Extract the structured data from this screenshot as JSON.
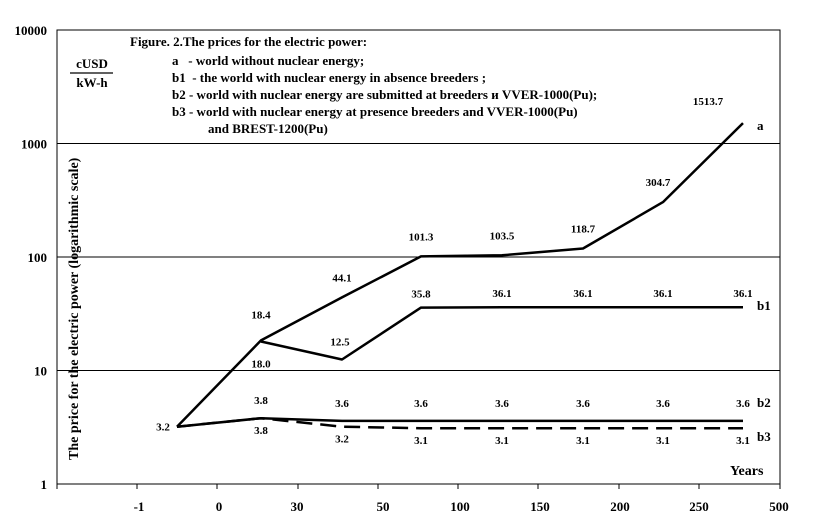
{
  "chart_data": {
    "type": "line",
    "y_scale": "log",
    "ylim": [
      1,
      10000
    ],
    "y_ticks": [
      "10000",
      "1000",
      "100",
      "10",
      "1"
    ],
    "x_ticks": [
      "-1",
      "0",
      "30",
      "50",
      "100",
      "150",
      "200",
      "250",
      "500"
    ],
    "x_positions": [
      "-1",
      "0",
      "30",
      "50",
      "100",
      "150",
      "200",
      "250"
    ],
    "xlabel": "Years",
    "ylabel": "The price for the electric power (logarithmic scale)",
    "units": {
      "numerator": "cUSD",
      "denominator": "kW-h"
    },
    "grid": "horizontal",
    "caption": [
      "Figure. 2.The prices for the electric power:",
      "a   - world without nuclear energy;",
      "b1  - the world with nuclear energy in absence breeders ;",
      "b2 - world with nuclear energy are submitted at  breeders и VVER-1000(Pu);",
      "b3 - world with nuclear energy  at presence breeders and VVER-1000(Pu)",
      "and BREST-1200(Pu)"
    ],
    "series": [
      {
        "name": "a",
        "dash": false,
        "x_index": [
          0,
          1,
          2,
          3,
          4,
          5,
          6,
          7
        ],
        "values": [
          3.2,
          18.4,
          44.1,
          101.3,
          103.5,
          118.7,
          304.7,
          1513.7
        ],
        "labels": [
          "",
          "18.4",
          "44.1",
          "101.3",
          "103.5",
          "118.7",
          "304.7",
          "1513.7"
        ]
      },
      {
        "name": "b1",
        "dash": false,
        "x_index": [
          1,
          2,
          3,
          4,
          5,
          6,
          7
        ],
        "values": [
          18.0,
          12.5,
          35.8,
          36.1,
          36.1,
          36.1,
          36.1
        ],
        "labels": [
          "18.0",
          "12.5",
          "35.8",
          "36.1",
          "36.1",
          "36.1",
          "36.1"
        ]
      },
      {
        "name": "b2",
        "dash": false,
        "x_index": [
          0,
          1,
          2,
          3,
          4,
          5,
          6,
          7
        ],
        "values": [
          3.2,
          3.8,
          3.6,
          3.6,
          3.6,
          3.6,
          3.6,
          3.6
        ],
        "labels": [
          "3.2",
          "3.8",
          "3.6",
          "3.6",
          "3.6",
          "3.6",
          "3.6",
          "3.6"
        ]
      },
      {
        "name": "b3",
        "dash": true,
        "x_index": [
          0,
          1,
          2,
          3,
          4,
          5,
          6,
          7
        ],
        "values": [
          3.2,
          3.8,
          3.2,
          3.1,
          3.1,
          3.1,
          3.1,
          3.1
        ],
        "labels": [
          "",
          "3.8",
          "3.2",
          "3.1",
          "3.1",
          "3.1",
          "3.1",
          "3.1"
        ]
      }
    ]
  }
}
